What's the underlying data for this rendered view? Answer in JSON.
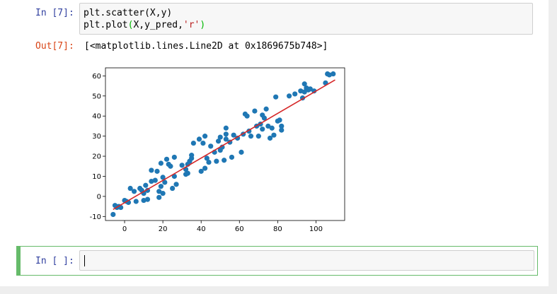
{
  "cells": [
    {
      "in_prompt": "In [7]:",
      "code_line_1": "plt.scatter(X,y)",
      "code_line_2_a": "plt.plot",
      "code_line_2_b": "(",
      "code_line_2_c": "X,y_pred,",
      "code_line_2_d": "'r'",
      "code_line_2_e": ")",
      "out_prompt": "Out[7]:",
      "output_text": "[<matplotlib.lines.Line2D at 0x1869675b748>]"
    },
    {
      "in_prompt": "In [ ]:",
      "code": ""
    }
  ],
  "colors": {
    "in_prompt": "#303f9f",
    "out_prompt": "#d84315",
    "scatter": "#1f77b4",
    "line": "#d62728",
    "active_cell_border": "#66bb6a"
  },
  "chart_data": {
    "type": "scatter",
    "xlim": [
      -10,
      115
    ],
    "ylim": [
      -12,
      64
    ],
    "xticks": [
      0,
      20,
      40,
      60,
      80,
      100
    ],
    "yticks": [
      -10,
      0,
      10,
      20,
      30,
      40,
      50,
      60
    ],
    "grid": false,
    "series": [
      {
        "kind": "scatter",
        "color": "#1f77b4",
        "points": [
          [
            -6,
            -9
          ],
          [
            -5,
            -4.5
          ],
          [
            -4,
            -5.5
          ],
          [
            -3,
            -5
          ],
          [
            -2,
            -5.5
          ],
          [
            0,
            -2
          ],
          [
            1,
            -2.5
          ],
          [
            2,
            -3
          ],
          [
            3,
            4
          ],
          [
            5,
            2.5
          ],
          [
            6,
            -2.5
          ],
          [
            8,
            4
          ],
          [
            9,
            3
          ],
          [
            10,
            1.5
          ],
          [
            10,
            -2
          ],
          [
            11,
            5.5
          ],
          [
            12,
            3
          ],
          [
            12,
            -1.5
          ],
          [
            14,
            7.5
          ],
          [
            14,
            13
          ],
          [
            16,
            8
          ],
          [
            17,
            12.5
          ],
          [
            18,
            2.5
          ],
          [
            18,
            -0.5
          ],
          [
            19,
            16.5
          ],
          [
            19,
            5
          ],
          [
            20,
            1.5
          ],
          [
            20,
            9.5
          ],
          [
            21,
            7
          ],
          [
            22,
            18.5
          ],
          [
            23,
            16
          ],
          [
            24,
            15
          ],
          [
            25,
            4
          ],
          [
            26,
            10
          ],
          [
            26,
            19.5
          ],
          [
            27,
            6
          ],
          [
            30,
            15.5
          ],
          [
            32,
            11
          ],
          [
            32,
            13.5
          ],
          [
            33,
            16
          ],
          [
            33,
            11.5
          ],
          [
            34,
            17.5
          ],
          [
            35,
            19
          ],
          [
            35,
            20.5
          ],
          [
            36,
            26.5
          ],
          [
            39,
            28.5
          ],
          [
            40,
            12.5
          ],
          [
            41,
            26.5
          ],
          [
            42,
            30
          ],
          [
            42,
            14
          ],
          [
            43,
            19
          ],
          [
            44,
            17
          ],
          [
            45,
            25
          ],
          [
            47,
            22
          ],
          [
            48,
            17.5
          ],
          [
            49,
            27.5
          ],
          [
            50,
            29.5
          ],
          [
            50,
            23
          ],
          [
            51,
            24.5
          ],
          [
            52,
            18
          ],
          [
            53,
            34
          ],
          [
            53,
            31
          ],
          [
            53,
            28.5
          ],
          [
            55,
            27
          ],
          [
            56,
            19.5
          ],
          [
            57,
            30.5
          ],
          [
            59,
            29
          ],
          [
            61,
            22
          ],
          [
            62,
            31
          ],
          [
            63,
            41
          ],
          [
            64,
            40
          ],
          [
            65,
            32.5
          ],
          [
            66,
            30
          ],
          [
            68,
            42.5
          ],
          [
            69,
            35
          ],
          [
            70,
            30
          ],
          [
            71,
            36
          ],
          [
            72,
            40.5
          ],
          [
            72,
            33.5
          ],
          [
            73,
            39
          ],
          [
            74,
            43.5
          ],
          [
            75,
            35
          ],
          [
            76,
            29
          ],
          [
            77,
            34
          ],
          [
            78,
            30.5
          ],
          [
            79,
            49.5
          ],
          [
            80,
            37.5
          ],
          [
            81,
            38
          ],
          [
            82,
            33
          ],
          [
            82,
            35
          ],
          [
            86,
            50
          ],
          [
            89,
            51
          ],
          [
            92,
            52.5
          ],
          [
            93,
            49
          ],
          [
            94,
            52
          ],
          [
            94,
            56
          ],
          [
            95,
            54
          ],
          [
            96,
            53
          ],
          [
            97,
            53.5
          ],
          [
            99,
            52.5
          ],
          [
            105,
            56.5
          ],
          [
            106,
            61
          ],
          [
            107,
            60.5
          ],
          [
            109,
            61
          ]
        ]
      },
      {
        "kind": "line",
        "color": "#d62728",
        "points": [
          [
            -6,
            -6.5
          ],
          [
            110,
            58
          ]
        ]
      }
    ]
  }
}
